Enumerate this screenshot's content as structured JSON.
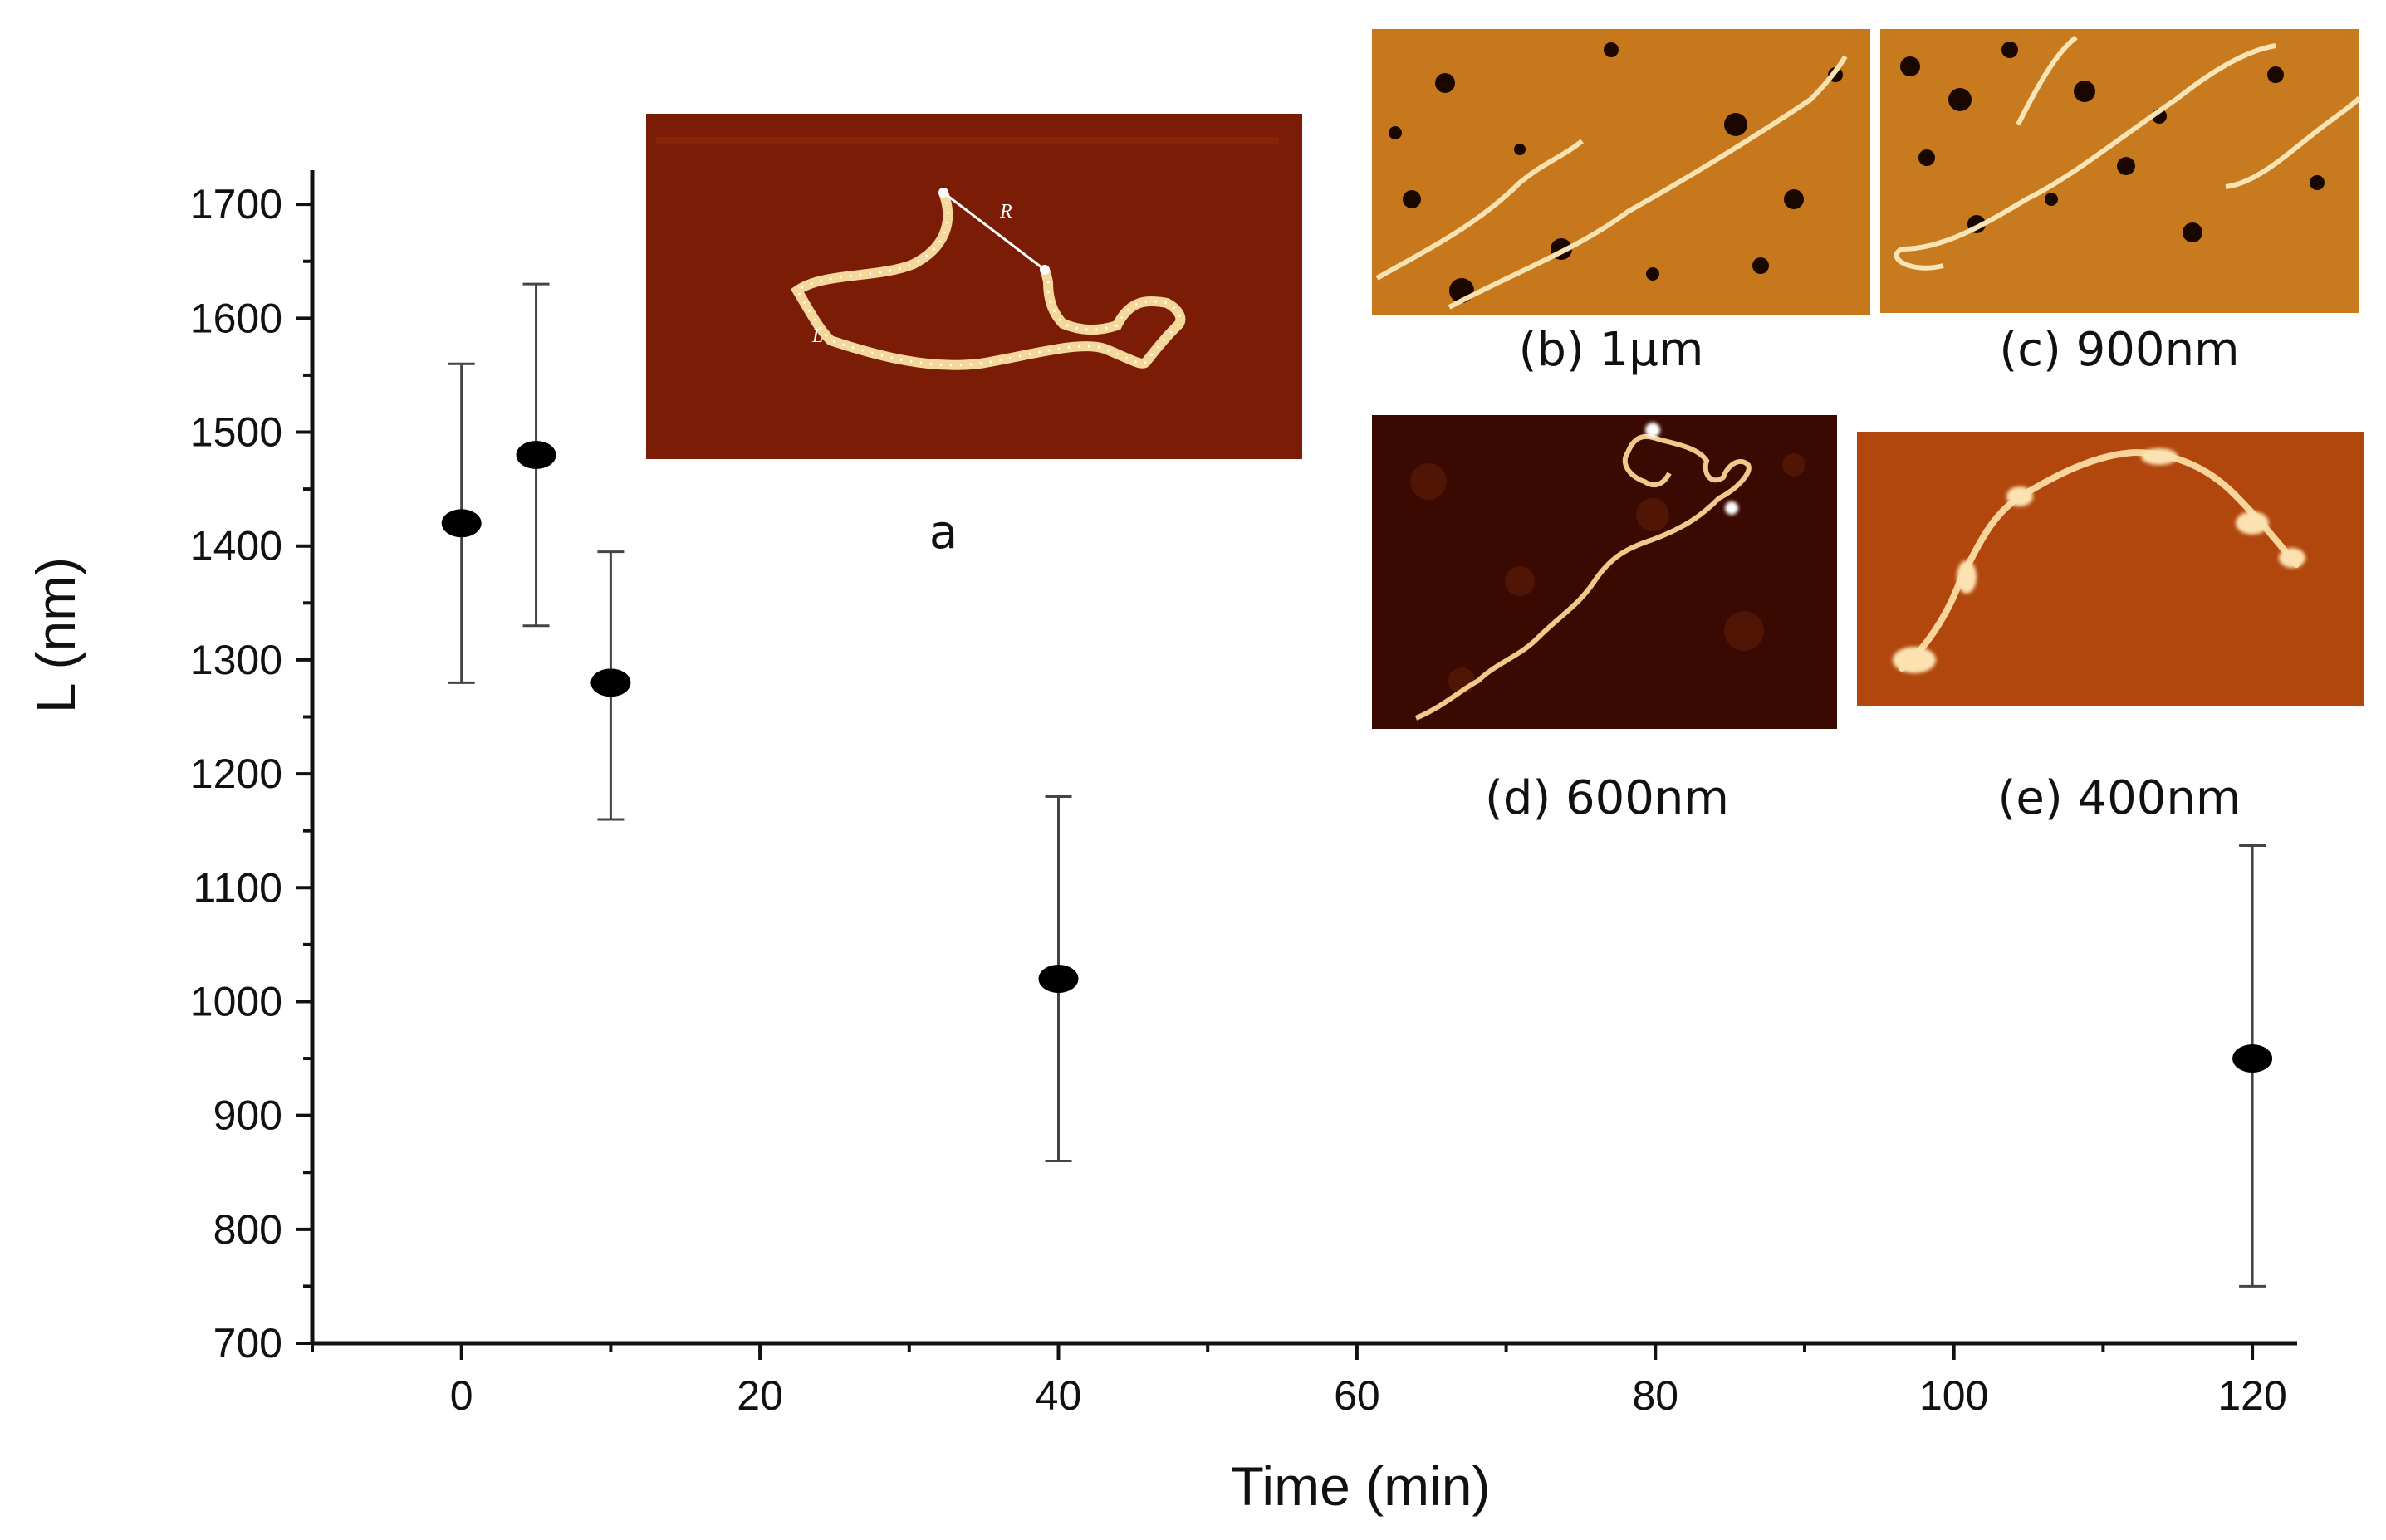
{
  "chart_data": {
    "type": "scatter",
    "title": "",
    "xlabel": "Time (min)",
    "ylabel": "L (nm)",
    "xlim": [
      -10,
      123
    ],
    "ylim": [
      700,
      1730
    ],
    "x_ticks": [
      0,
      20,
      40,
      60,
      80,
      100,
      120
    ],
    "y_ticks": [
      700,
      800,
      900,
      1000,
      1100,
      1200,
      1300,
      1400,
      1500,
      1600,
      1700
    ],
    "grid": false,
    "legend": "none",
    "marker_color": "#000000",
    "series": [
      {
        "points": [
          {
            "x": 0,
            "y": 1420,
            "err_low": 1280,
            "err_high": 1560
          },
          {
            "x": 5,
            "y": 1480,
            "err_low": 1330,
            "err_high": 1630
          },
          {
            "x": 10,
            "y": 1280,
            "err_low": 1160,
            "err_high": 1395
          },
          {
            "x": 40,
            "y": 1020,
            "err_low": 860,
            "err_high": 1180
          },
          {
            "x": 120,
            "y": 950,
            "err_low": 750,
            "err_high": 1137
          }
        ]
      }
    ]
  },
  "insets": {
    "a": {
      "caption": "a",
      "R_label": "R",
      "L_label": "L",
      "bg": "#7a1c06",
      "strand": "#f4d79a"
    },
    "b": {
      "caption": "(b) 1μm",
      "bg": "#c8781c",
      "strand": "#f7e2b0"
    },
    "c": {
      "caption": "(c) 900nm",
      "bg": "#c77a1e",
      "strand": "#f8e4b4"
    },
    "d": {
      "caption": "(d) 600nm",
      "bg": "#3a0a02",
      "strand": "#f2c98a"
    },
    "e": {
      "caption": "(e) 400nm",
      "bg": "#b2470e",
      "strand": "#f6d49a"
    }
  }
}
